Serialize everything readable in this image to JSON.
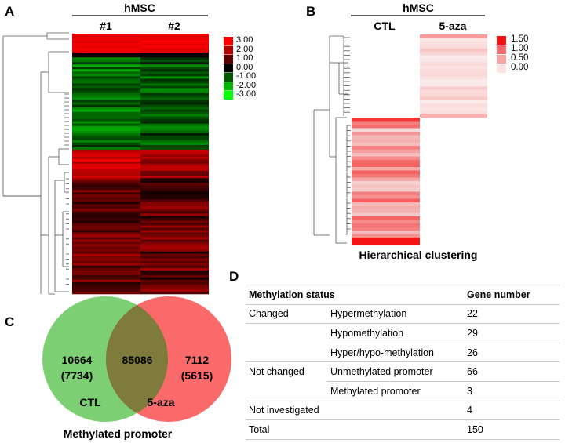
{
  "panels": {
    "a": {
      "letter": "A",
      "group": "hMSC",
      "columns": [
        "#1",
        "#2"
      ],
      "legend": [
        "3.00",
        "2.00",
        "1.00",
        "0.00",
        "-1.00",
        "-2.00",
        "-3.00"
      ],
      "legend_colors": [
        "#ff0000",
        "#b40000",
        "#5a0000",
        "#000000",
        "#005a00",
        "#00b400",
        "#00ff00"
      ]
    },
    "b": {
      "letter": "B",
      "group": "hMSC",
      "columns": [
        "CTL",
        "5-aza"
      ],
      "legend": [
        "1.50",
        "1.00",
        "0.50",
        "0.00"
      ],
      "legend_colors": [
        "#ee1111",
        "#f46a6a",
        "#f8a3a3",
        "#fde0e0"
      ],
      "caption": "Hierarchical clustering"
    },
    "c": {
      "letter": "C",
      "left_count": "10664",
      "left_sub": "(7734)",
      "overlap": "85086",
      "right_count": "7112",
      "right_sub": "(5615)",
      "left_label": "CTL",
      "right_label": "5-aza",
      "caption": "Methylated promoter",
      "left_color": "#7ccf72",
      "right_color": "#fa6a6a",
      "overlap_color": "#7e7b3c"
    },
    "d": {
      "letter": "D",
      "header_status": "Methylation status",
      "header_count": "Gene number",
      "rows": [
        {
          "group": "Changed",
          "sub": "Hypermethylation",
          "count": "22"
        },
        {
          "group": "",
          "sub": "Hypomethylation",
          "count": "29"
        },
        {
          "group": "",
          "sub": "Hyper/hypo-methylation",
          "count": "26"
        },
        {
          "group": "Not changed",
          "sub": "Unmethylated promoter",
          "count": "66"
        },
        {
          "group": "",
          "sub": "Methylated promoter",
          "count": "3"
        },
        {
          "group": "Not investigated",
          "sub": "",
          "count": "4"
        },
        {
          "group": "Total",
          "sub": "",
          "count": "150"
        }
      ]
    }
  }
}
